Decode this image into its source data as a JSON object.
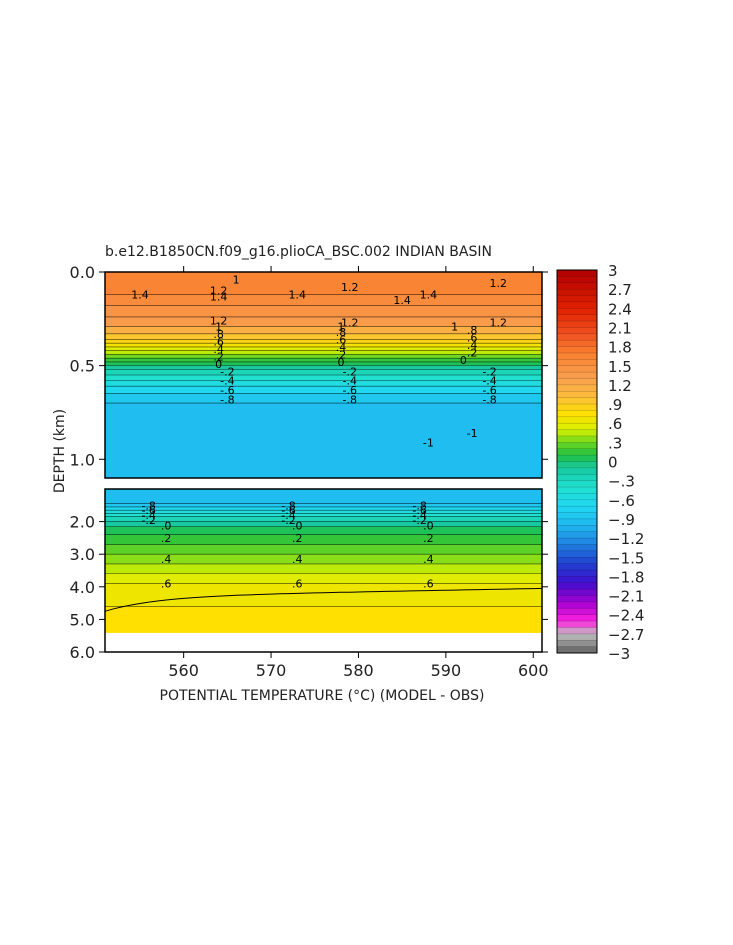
{
  "chart_data": {
    "type": "heatmap",
    "title": "b.e12.B1850CN.f09_g16.plioCA_BSC.002 INDIAN BASIN",
    "xlabel": "POTENTIAL TEMPERATURE (°C) (MODEL - OBS)",
    "ylabel": "DEPTH (km)",
    "xlim": [
      551,
      601
    ],
    "x_ticks": [
      "560",
      "570",
      "580",
      "590",
      "600"
    ],
    "x_tick_values": [
      560,
      570,
      580,
      590,
      600
    ],
    "upper_panel": {
      "ylim": [
        0.0,
        1.1
      ],
      "y_ticks": [
        "0.0",
        "0.5",
        "1.0"
      ],
      "y_tick_values": [
        0.0,
        0.5,
        1.0
      ],
      "bands": [
        {
          "depth": [
            0.0,
            0.12
          ],
          "value": 1.65
        },
        {
          "depth": [
            0.12,
            0.18
          ],
          "value": 1.55
        },
        {
          "depth": [
            0.18,
            0.24
          ],
          "value": 1.45
        },
        {
          "depth": [
            0.24,
            0.29
          ],
          "value": 1.35
        },
        {
          "depth": [
            0.29,
            0.33
          ],
          "value": 1.15
        },
        {
          "depth": [
            0.33,
            0.36
          ],
          "value": 0.95
        },
        {
          "depth": [
            0.36,
            0.38
          ],
          "value": 0.85
        },
        {
          "depth": [
            0.38,
            0.4
          ],
          "value": 0.7
        },
        {
          "depth": [
            0.4,
            0.42
          ],
          "value": 0.55
        },
        {
          "depth": [
            0.42,
            0.44
          ],
          "value": 0.45
        },
        {
          "depth": [
            0.44,
            0.46
          ],
          "value": 0.3
        },
        {
          "depth": [
            0.46,
            0.48
          ],
          "value": 0.15
        },
        {
          "depth": [
            0.48,
            0.5
          ],
          "value": 0.05
        },
        {
          "depth": [
            0.5,
            0.52
          ],
          "value": -0.1
        },
        {
          "depth": [
            0.52,
            0.55
          ],
          "value": -0.25
        },
        {
          "depth": [
            0.55,
            0.58
          ],
          "value": -0.4
        },
        {
          "depth": [
            0.58,
            0.61
          ],
          "value": -0.55
        },
        {
          "depth": [
            0.61,
            0.65
          ],
          "value": -0.7
        },
        {
          "depth": [
            0.65,
            0.7
          ],
          "value": -0.85
        },
        {
          "depth": [
            0.7,
            1.1
          ],
          "value": -0.95
        }
      ],
      "contour_labels": [
        {
          "text": "1",
          "x": 566,
          "y": 0.04
        },
        {
          "text": "1.2",
          "x": 579,
          "y": 0.08
        },
        {
          "text": "1.2",
          "x": 596,
          "y": 0.06
        },
        {
          "text": "1.4",
          "x": 555,
          "y": 0.12
        },
        {
          "text": "1.4",
          "x": 573,
          "y": 0.12
        },
        {
          "text": "1.4",
          "x": 588,
          "y": 0.12
        },
        {
          "text": "1.2",
          "x": 564,
          "y": 0.1
        },
        {
          "text": "1.4",
          "x": 564,
          "y": 0.13
        },
        {
          "text": "1.4",
          "x": 585,
          "y": 0.15
        },
        {
          "text": "1.2",
          "x": 564,
          "y": 0.26
        },
        {
          "text": "1.2",
          "x": 579,
          "y": 0.27
        },
        {
          "text": "1.2",
          "x": 596,
          "y": 0.27
        },
        {
          "text": "1",
          "x": 564,
          "y": 0.29
        },
        {
          "text": "1",
          "x": 578,
          "y": 0.29
        },
        {
          "text": "1",
          "x": 591,
          "y": 0.29
        },
        {
          "text": ".8",
          "x": 564,
          "y": 0.33
        },
        {
          "text": ".8",
          "x": 578,
          "y": 0.32
        },
        {
          "text": ".8",
          "x": 593,
          "y": 0.31
        },
        {
          "text": ".6",
          "x": 564,
          "y": 0.37
        },
        {
          "text": ".6",
          "x": 578,
          "y": 0.36
        },
        {
          "text": ".6",
          "x": 593,
          "y": 0.35
        },
        {
          "text": ".4",
          "x": 564,
          "y": 0.41
        },
        {
          "text": ".4",
          "x": 578,
          "y": 0.4
        },
        {
          "text": ".4",
          "x": 593,
          "y": 0.39
        },
        {
          "text": ".2",
          "x": 564,
          "y": 0.45
        },
        {
          "text": ".2",
          "x": 578,
          "y": 0.44
        },
        {
          "text": ".2",
          "x": 593,
          "y": 0.43
        },
        {
          "text": "0",
          "x": 564,
          "y": 0.49
        },
        {
          "text": "0",
          "x": 578,
          "y": 0.48
        },
        {
          "text": "0",
          "x": 592,
          "y": 0.47
        },
        {
          "text": "-.2",
          "x": 565,
          "y": 0.53
        },
        {
          "text": "-.2",
          "x": 579,
          "y": 0.53
        },
        {
          "text": "-.2",
          "x": 595,
          "y": 0.53
        },
        {
          "text": "-.4",
          "x": 565,
          "y": 0.58
        },
        {
          "text": "-.4",
          "x": 579,
          "y": 0.58
        },
        {
          "text": "-.4",
          "x": 595,
          "y": 0.58
        },
        {
          "text": "-.6",
          "x": 565,
          "y": 0.63
        },
        {
          "text": "-.6",
          "x": 579,
          "y": 0.63
        },
        {
          "text": "-.6",
          "x": 595,
          "y": 0.63
        },
        {
          "text": "-.8",
          "x": 565,
          "y": 0.68
        },
        {
          "text": "-.8",
          "x": 579,
          "y": 0.68
        },
        {
          "text": "-.8",
          "x": 595,
          "y": 0.68
        },
        {
          "text": "-1",
          "x": 588,
          "y": 0.91
        },
        {
          "text": "-1",
          "x": 593,
          "y": 0.86
        }
      ]
    },
    "lower_panel": {
      "ylim": [
        1.0,
        6.0
      ],
      "y_ticks": [
        "2.0",
        "3.0",
        "4.0",
        "5.0",
        "6.0"
      ],
      "y_tick_values": [
        2.0,
        3.0,
        4.0,
        5.0,
        6.0
      ],
      "data_bottom": 5.4,
      "bands": [
        {
          "depth": [
            1.0,
            1.45
          ],
          "value": -0.95
        },
        {
          "depth": [
            1.45,
            1.55
          ],
          "value": -0.85
        },
        {
          "depth": [
            1.55,
            1.65
          ],
          "value": -0.7
        },
        {
          "depth": [
            1.65,
            1.75
          ],
          "value": -0.55
        },
        {
          "depth": [
            1.75,
            1.85
          ],
          "value": -0.4
        },
        {
          "depth": [
            1.85,
            2.0
          ],
          "value": -0.25
        },
        {
          "depth": [
            2.0,
            2.15
          ],
          "value": -0.1
        },
        {
          "depth": [
            2.15,
            2.4
          ],
          "value": 0.05
        },
        {
          "depth": [
            2.4,
            2.7
          ],
          "value": 0.15
        },
        {
          "depth": [
            2.7,
            3.0
          ],
          "value": 0.25
        },
        {
          "depth": [
            3.0,
            3.3
          ],
          "value": 0.35
        },
        {
          "depth": [
            3.3,
            3.6
          ],
          "value": 0.45
        },
        {
          "depth": [
            3.6,
            3.9
          ],
          "value": 0.55
        },
        {
          "depth": [
            3.9,
            4.6
          ],
          "value": 0.65
        },
        {
          "depth": [
            4.6,
            5.4
          ],
          "value": 0.75
        }
      ],
      "contour_labels": [
        {
          "text": "-.8",
          "x": 556,
          "y": 1.5
        },
        {
          "text": "-.6",
          "x": 556,
          "y": 1.65
        },
        {
          "text": "-.4",
          "x": 556,
          "y": 1.8
        },
        {
          "text": "-.2",
          "x": 556,
          "y": 1.95
        },
        {
          "text": "-.8",
          "x": 572,
          "y": 1.5
        },
        {
          "text": "-.6",
          "x": 572,
          "y": 1.65
        },
        {
          "text": "-.4",
          "x": 572,
          "y": 1.8
        },
        {
          "text": "-.2",
          "x": 572,
          "y": 1.95
        },
        {
          "text": "-.8",
          "x": 587,
          "y": 1.5
        },
        {
          "text": "-.6",
          "x": 587,
          "y": 1.65
        },
        {
          "text": "-.4",
          "x": 587,
          "y": 1.8
        },
        {
          "text": "-.2",
          "x": 587,
          "y": 1.95
        },
        {
          "text": ".0",
          "x": 558,
          "y": 2.12
        },
        {
          "text": ".0",
          "x": 573,
          "y": 2.12
        },
        {
          "text": ".0",
          "x": 588,
          "y": 2.12
        },
        {
          "text": ".2",
          "x": 558,
          "y": 2.5
        },
        {
          "text": ".2",
          "x": 573,
          "y": 2.5
        },
        {
          "text": ".2",
          "x": 588,
          "y": 2.5
        },
        {
          "text": ".4",
          "x": 558,
          "y": 3.15
        },
        {
          "text": ".4",
          "x": 573,
          "y": 3.15
        },
        {
          "text": ".4",
          "x": 588,
          "y": 3.15
        },
        {
          "text": ".6",
          "x": 558,
          "y": 3.9
        },
        {
          "text": ".6",
          "x": 573,
          "y": 3.9
        },
        {
          "text": ".6",
          "x": 588,
          "y": 3.9
        }
      ]
    },
    "colorbar": {
      "range": [
        -3,
        3
      ],
      "labels": [
        "3",
        "2.7",
        "2.4",
        "2.1",
        "1.8",
        "1.5",
        "1.2",
        ".9",
        ".6",
        ".3",
        "0",
        "−.3",
        "−.6",
        "−.9",
        "−1.2",
        "−1.5",
        "−1.8",
        "−2.1",
        "−2.4",
        "−2.7",
        "−3"
      ],
      "label_values": [
        3,
        2.7,
        2.4,
        2.1,
        1.8,
        1.5,
        1.2,
        0.9,
        0.6,
        0.3,
        0,
        -0.3,
        -0.6,
        -0.9,
        -1.2,
        -1.5,
        -1.8,
        -2.1,
        -2.4,
        -2.7,
        -3
      ],
      "stops": [
        {
          "value": 3.0,
          "color": "#b00000"
        },
        {
          "value": 2.4,
          "color": "#e02000"
        },
        {
          "value": 2.0,
          "color": "#f05020"
        },
        {
          "value": 1.7,
          "color": "#f88030"
        },
        {
          "value": 1.3,
          "color": "#f8a050"
        },
        {
          "value": 1.0,
          "color": "#fbbf3a"
        },
        {
          "value": 0.75,
          "color": "#ffe000"
        },
        {
          "value": 0.5,
          "color": "#d8f000"
        },
        {
          "value": 0.3,
          "color": "#70d820"
        },
        {
          "value": 0.1,
          "color": "#20c040"
        },
        {
          "value": -0.1,
          "color": "#18c8a0"
        },
        {
          "value": -0.4,
          "color": "#20e0d0"
        },
        {
          "value": -0.7,
          "color": "#20d8f0"
        },
        {
          "value": -1.0,
          "color": "#20b8f0"
        },
        {
          "value": -1.3,
          "color": "#2080e0"
        },
        {
          "value": -1.6,
          "color": "#2040d0"
        },
        {
          "value": -1.9,
          "color": "#4010d0"
        },
        {
          "value": -2.2,
          "color": "#a000d0"
        },
        {
          "value": -2.5,
          "color": "#ff20e0"
        },
        {
          "value": -2.7,
          "color": "#c0c0c0"
        },
        {
          "value": -3.0,
          "color": "#606060"
        }
      ]
    }
  }
}
